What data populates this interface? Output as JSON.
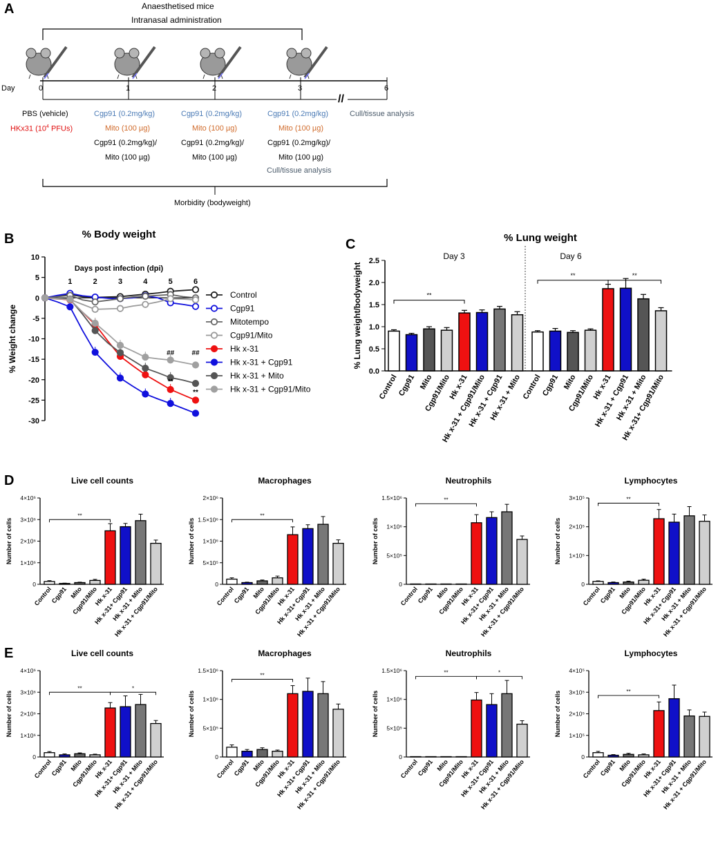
{
  "panel_letters": {
    "a": "A",
    "b": "B",
    "c": "C",
    "d": "D",
    "e": "E"
  },
  "colors": {
    "control": "#ffffff",
    "cgp91": "#1010c8",
    "mito": "#555555",
    "cgp91mito": "#d0d0d0",
    "hk": "#ee1111",
    "blue_text": "#4a7ab5",
    "orange_text": "#d06a2a",
    "red_text": "#e01010",
    "grey_text": "#4a5a6a"
  },
  "timeline": {
    "header1": "Anaesthetised mice",
    "header2": "Intranasal administration",
    "day_label": "Day",
    "days": [
      "0",
      "1",
      "2",
      "3",
      "6"
    ],
    "break_mark": "//",
    "col0": {
      "line1": "PBS (vehicle)",
      "line2_pre": "HKx31 (10",
      "line2_sup": "4",
      "line2_post": " PFUs)"
    },
    "col_treat": {
      "line1": "Cgp91 (0.2mg/kg)",
      "line2": "Mito (100 µg)",
      "line3": "Cgp91 (0.2mg/kg)/",
      "line4": "Mito (100 µg)"
    },
    "col3_extra": "Cull/tissue analysis",
    "col6": "Cull/tissue analysis",
    "morbidity": "Morbidity (bodyweight)"
  },
  "chart_data": [
    {
      "id": "B",
      "type": "line",
      "title": "% Body weight",
      "subtitle": "Days post infection (dpi)",
      "ylabel": "% Weight change",
      "ylim": [
        -30,
        10
      ],
      "yticks": [
        10,
        5,
        0,
        -5,
        -10,
        -15,
        -20,
        -25,
        -30
      ],
      "x": [
        0,
        0.5,
        1,
        1.5,
        2,
        2.5,
        3,
        3.5,
        4,
        4.5,
        5,
        5.5,
        6
      ],
      "xticks": [
        1,
        2,
        3,
        4,
        5,
        6
      ],
      "series": [
        {
          "name": "Control",
          "marker": "open",
          "color": "#222222",
          "values": [
            0,
            0.5,
            0.8,
            0.3,
            0.1,
            0.2,
            0.3,
            0.6,
            0.9,
            1.2,
            1.6,
            1.8,
            2.0
          ]
        },
        {
          "name": "Cgp91",
          "marker": "open",
          "color": "#1010dd",
          "values": [
            0,
            0.6,
            1.1,
            0.5,
            0.2,
            -0.1,
            -0.2,
            0.0,
            0.5,
            0.0,
            -1.2,
            -1.6,
            -2.1
          ]
        },
        {
          "name": "Mitotempo",
          "marker": "open",
          "color": "#666666",
          "values": [
            0,
            0.3,
            0.6,
            -0.5,
            -1.0,
            -0.6,
            -0.2,
            0.2,
            0.4,
            0.6,
            0.8,
            0.3,
            0.0
          ]
        },
        {
          "name": "Cgp91/Mito",
          "marker": "open",
          "color": "#9a9a9a",
          "values": [
            0,
            -0.3,
            -0.4,
            -1.6,
            -2.8,
            -2.7,
            -2.6,
            -2.0,
            -1.6,
            -1.0,
            -0.2,
            -0.3,
            -0.5
          ]
        },
        {
          "name": "Hk x-31",
          "marker": "filled",
          "color": "#ee1111",
          "values": [
            0,
            -0.2,
            -0.5,
            -3.5,
            -6.5,
            -10.5,
            -14.3,
            -16.6,
            -18.8,
            -20.6,
            -22.4,
            -23.7,
            -25.0
          ]
        },
        {
          "name": "Hk x-31 + Cgp91",
          "marker": "filled",
          "color": "#1010dd",
          "values": [
            0,
            -1.0,
            -2.2,
            -8,
            -13.3,
            -16.5,
            -19.6,
            -21.6,
            -23.5,
            -24.7,
            -25.8,
            -27.0,
            -28.2
          ]
        },
        {
          "name": "Hk x-31 + Mito",
          "marker": "filled",
          "color": "#555555",
          "values": [
            0,
            -0.1,
            -0.3,
            -4.0,
            -8.0,
            -11.0,
            -13.4,
            -15.3,
            -17.2,
            -18.3,
            -19.5,
            -20.1,
            -20.9
          ]
        },
        {
          "name": "Hk x-31 + Cgp91/Mito",
          "marker": "filled",
          "color": "#a0a0a0",
          "values": [
            0,
            -0.2,
            -0.4,
            -3.5,
            -6.2,
            -8.8,
            -11.6,
            -13.0,
            -14.5,
            -14.9,
            -15.2,
            -15.8,
            -16.4
          ]
        }
      ],
      "annotations": [
        {
          "x": 5,
          "y": -14,
          "text": "##"
        },
        {
          "x": 6,
          "y": -14,
          "text": "##"
        },
        {
          "x": 5,
          "y": -21,
          "text": "**"
        },
        {
          "x": 6,
          "y": -23.6,
          "text": "**"
        }
      ]
    },
    {
      "id": "C",
      "type": "bar",
      "title": "% Lung weight",
      "ylabel": "% Lung weight/bodyweight",
      "ylim": [
        0,
        2.5
      ],
      "yticks": [
        0.0,
        0.5,
        1.0,
        1.5,
        2.0,
        2.5
      ],
      "group_labels": [
        "Day 3",
        "Day 6"
      ],
      "categories": [
        "Control",
        "Cgp91",
        "Mito",
        "Cgp91/Mito",
        "Hk x-31",
        "Hk x-31 + Cgp91/Mito",
        "Hk x-31 + Cgp91",
        "Hk x-31 + Mito",
        "Control",
        "Cgp91",
        "Mito",
        "Cgp91/Mito",
        "Hk x-31",
        "Hk x-31 + Cgp91",
        "Hk x-31 + Mito",
        "Hk x-31+ Cgp91/Mito"
      ],
      "colors": [
        "#ffffff",
        "#1010c8",
        "#555555",
        "#d0d0d0",
        "#ee1111",
        "#1010c8",
        "#777777",
        "#d0d0d0",
        "#ffffff",
        "#1010c8",
        "#555555",
        "#d0d0d0",
        "#ee1111",
        "#1010c8",
        "#555555",
        "#d0d0d0"
      ],
      "values": [
        0.9,
        0.82,
        0.95,
        0.92,
        1.31,
        1.32,
        1.4,
        1.27,
        0.88,
        0.9,
        0.87,
        0.92,
        1.86,
        1.87,
        1.63,
        1.36
      ],
      "errors": [
        0.03,
        0.03,
        0.05,
        0.06,
        0.06,
        0.06,
        0.06,
        0.07,
        0.03,
        0.06,
        0.04,
        0.03,
        0.1,
        0.22,
        0.1,
        0.07
      ],
      "brackets": [
        {
          "from": 0,
          "to": 4,
          "y": 1.6,
          "text": "**"
        },
        {
          "from": 8,
          "to": 12,
          "y": 2.05,
          "text": "**"
        },
        {
          "from": 12,
          "to": 15,
          "y": 2.05,
          "text": "**"
        }
      ]
    }
  ],
  "bar_panels": {
    "categories": [
      "Control",
      "Cgp91",
      "Mito",
      "Cgp91/Mito",
      "Hk x-31",
      "Hk x-31+ Cgp91",
      "Hk x-31 + Mito",
      "Hk x-31 + Cgp91/Mito"
    ],
    "colors": [
      "#ffffff",
      "#1010c8",
      "#666666",
      "#d0d0d0",
      "#ee1111",
      "#1010c8",
      "#777777",
      "#d0d0d0"
    ],
    "ylabel": "Number of cells",
    "rows": [
      {
        "letter": "D",
        "charts": [
          {
            "title": "Live cell counts",
            "ymax": 4000000,
            "ticks": [
              "0",
              "1×10⁶",
              "2×10⁶",
              "3×10⁶",
              "4×10⁶"
            ],
            "values": [
              130000,
              40000,
              80000,
              180000,
              2480000,
              2670000,
              2950000,
              1900000
            ],
            "errors": [
              40000,
              15000,
              20000,
              50000,
              330000,
              150000,
              300000,
              150000
            ],
            "brackets": [
              {
                "from": 0,
                "to": 4,
                "y": 3000000,
                "text": "**"
              }
            ]
          },
          {
            "title": "Macrophages",
            "ymax": 2000000,
            "ticks": [
              "0",
              "5×10⁵",
              "1×10⁶",
              "1.5×10⁶",
              "2×10⁶"
            ],
            "values": [
              120000,
              40000,
              80000,
              150000,
              1150000,
              1290000,
              1390000,
              950000
            ],
            "errors": [
              30000,
              10000,
              20000,
              40000,
              180000,
              90000,
              180000,
              80000
            ],
            "brackets": [
              {
                "from": 0,
                "to": 4,
                "y": 1500000,
                "text": "**"
              }
            ]
          },
          {
            "title": "Neutrophils",
            "ymax": 1500000,
            "ticks": [
              "0",
              "5×10⁵",
              "1×10⁶",
              "1.5×10⁶"
            ],
            "values": [
              0,
              0,
              0,
              0,
              1070000,
              1160000,
              1260000,
              780000
            ],
            "errors": [
              0,
              0,
              0,
              0,
              140000,
              100000,
              130000,
              60000
            ],
            "brackets": [
              {
                "from": 0,
                "to": 4,
                "y": 1400000,
                "text": "**"
              }
            ]
          },
          {
            "title": "Lymphocytes",
            "ymax": 300000,
            "ticks": [
              "0",
              "1×10⁵",
              "2×10⁵",
              "3×10⁵"
            ],
            "values": [
              10000,
              6000,
              8000,
              14000,
              228000,
              216000,
              238000,
              219000
            ],
            "errors": [
              2000,
              2000,
              3000,
              4000,
              32000,
              28000,
              32000,
              22000
            ],
            "brackets": [
              {
                "from": 0,
                "to": 4,
                "y": 282000,
                "text": "**"
              }
            ]
          }
        ]
      },
      {
        "letter": "E",
        "charts": [
          {
            "title": "Live cell counts",
            "ymax": 4000000,
            "ticks": [
              "0",
              "1×10⁶",
              "2×10⁶",
              "3×10⁶",
              "4×10⁶"
            ],
            "values": [
              200000,
              100000,
              150000,
              100000,
              2270000,
              2330000,
              2430000,
              1550000
            ],
            "errors": [
              50000,
              40000,
              40000,
              30000,
              250000,
              500000,
              470000,
              140000
            ],
            "brackets": [
              {
                "from": 0,
                "to": 4,
                "y": 3000000,
                "text": "**"
              },
              {
                "from": 4,
                "to": 7,
                "y": 3000000,
                "text": "*"
              }
            ]
          },
          {
            "title": "Macrophages",
            "ymax": 1500000,
            "ticks": [
              "0",
              "5×10⁵",
              "1×10⁶",
              "1.5×10⁶"
            ],
            "values": [
              170000,
              100000,
              130000,
              100000,
              1100000,
              1140000,
              1100000,
              830000
            ],
            "errors": [
              40000,
              30000,
              30000,
              20000,
              140000,
              230000,
              210000,
              90000
            ],
            "brackets": [
              {
                "from": 0,
                "to": 4,
                "y": 1350000,
                "text": "**"
              }
            ]
          },
          {
            "title": "Neutrophils",
            "ymax": 1500000,
            "ticks": [
              "0",
              "5×10⁵",
              "1×10⁶",
              "1.5×10⁶"
            ],
            "values": [
              0,
              0,
              0,
              0,
              990000,
              910000,
              1100000,
              570000
            ],
            "errors": [
              0,
              0,
              0,
              0,
              130000,
              190000,
              230000,
              60000
            ],
            "brackets": [
              {
                "from": 0,
                "to": 4,
                "y": 1400000,
                "text": "**"
              },
              {
                "from": 4,
                "to": 7,
                "y": 1400000,
                "text": "*"
              }
            ]
          },
          {
            "title": "Lymphocytes",
            "ymax": 400000,
            "ticks": [
              "0",
              "1×10⁵",
              "2×10⁵",
              "3×10⁵",
              "4×10⁵"
            ],
            "values": [
              20000,
              8000,
              12000,
              10000,
              215000,
              270000,
              190000,
              188000
            ],
            "errors": [
              6000,
              3000,
              5000,
              4000,
              40000,
              63000,
              28000,
              20000
            ],
            "brackets": [
              {
                "from": 0,
                "to": 4,
                "y": 285000,
                "text": "**"
              }
            ]
          }
        ]
      }
    ]
  }
}
